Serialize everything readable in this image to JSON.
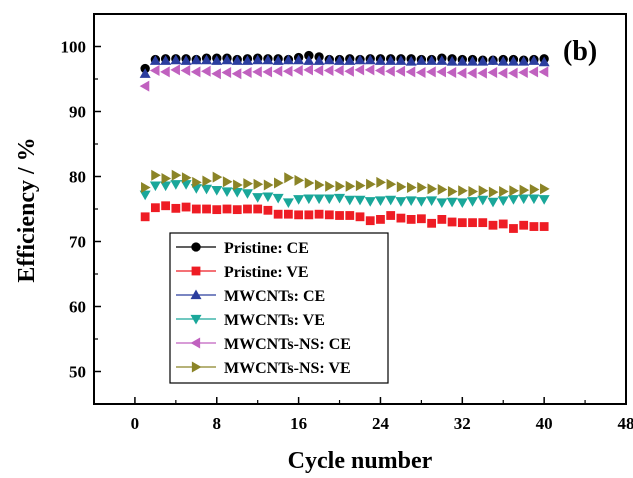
{
  "chart_data": {
    "type": "scatter",
    "panel_label": "(b)",
    "xlabel": "Cycle number",
    "ylabel": "Efficiency / %",
    "xlim": [
      -4,
      48
    ],
    "ylim": [
      45,
      105
    ],
    "xticks": [
      0,
      8,
      16,
      24,
      32,
      40,
      48
    ],
    "yticks": [
      50,
      60,
      70,
      80,
      90,
      100
    ],
    "legend_position": "bottom-left",
    "grid": false,
    "x": [
      1,
      2,
      3,
      4,
      5,
      6,
      7,
      8,
      9,
      10,
      11,
      12,
      13,
      14,
      15,
      16,
      17,
      18,
      19,
      20,
      21,
      22,
      23,
      24,
      25,
      26,
      27,
      28,
      29,
      30,
      31,
      32,
      33,
      34,
      35,
      36,
      37,
      38,
      39,
      40
    ],
    "series": [
      {
        "name": "Pristine: CE",
        "color": "#000000",
        "marker": "circle",
        "values": [
          96.6,
          98.0,
          98.1,
          98.1,
          98.1,
          98.0,
          98.2,
          98.2,
          98.2,
          98.0,
          98.1,
          98.2,
          98.1,
          98.1,
          98.0,
          98.3,
          98.6,
          98.4,
          98.0,
          98.0,
          98.1,
          98.0,
          98.1,
          98.1,
          98.1,
          98.1,
          98.1,
          98.0,
          98.0,
          98.2,
          98.1,
          98.0,
          98.0,
          97.9,
          97.9,
          98.0,
          98.0,
          97.9,
          98.0,
          98.1
        ]
      },
      {
        "name": "Pristine: VE",
        "color": "#ee1c24",
        "marker": "square",
        "values": [
          73.8,
          75.2,
          75.5,
          75.1,
          75.3,
          75.0,
          75.0,
          74.9,
          75.0,
          74.9,
          75.0,
          75.0,
          74.8,
          74.2,
          74.2,
          74.1,
          74.1,
          74.2,
          74.1,
          74.0,
          74.0,
          73.8,
          73.2,
          73.4,
          74.0,
          73.6,
          73.4,
          73.5,
          72.8,
          73.4,
          73.0,
          72.9,
          72.9,
          72.9,
          72.5,
          72.7,
          72.0,
          72.5,
          72.3,
          72.3
        ]
      },
      {
        "name": "MWCNTs: CE",
        "color": "#2b3d9e",
        "marker": "triangle-up",
        "values": [
          95.8,
          97.8,
          97.8,
          97.9,
          97.8,
          97.9,
          97.9,
          97.8,
          97.9,
          97.8,
          97.8,
          97.9,
          97.9,
          97.8,
          97.9,
          97.9,
          97.8,
          97.8,
          97.9,
          97.8,
          97.8,
          97.9,
          97.9,
          97.8,
          97.8,
          97.8,
          97.7,
          97.8,
          97.8,
          97.8,
          97.7,
          97.7,
          97.7,
          97.7,
          97.8,
          97.7,
          97.7,
          97.7,
          97.8,
          97.6
        ]
      },
      {
        "name": "MWCNTs: VE",
        "color": "#1aa79a",
        "marker": "triangle-down",
        "values": [
          77.2,
          78.6,
          78.6,
          78.8,
          78.8,
          78.2,
          78.1,
          77.9,
          77.7,
          77.6,
          77.4,
          76.8,
          76.9,
          76.7,
          76.0,
          76.5,
          76.6,
          76.6,
          76.6,
          76.7,
          76.4,
          76.4,
          76.2,
          76.3,
          76.4,
          76.2,
          76.3,
          76.2,
          76.3,
          76.0,
          76.1,
          76.0,
          76.2,
          76.4,
          76.1,
          76.3,
          76.5,
          76.6,
          76.6,
          76.5
        ]
      },
      {
        "name": "MWCNTs-NS: CE",
        "color": "#c061bf",
        "marker": "triangle-left",
        "values": [
          93.9,
          96.3,
          96.1,
          96.4,
          96.3,
          96.1,
          96.2,
          95.8,
          96.0,
          95.8,
          96.0,
          96.1,
          96.1,
          96.2,
          96.2,
          96.3,
          96.4,
          96.3,
          96.3,
          96.3,
          96.2,
          96.4,
          96.4,
          96.3,
          96.2,
          96.2,
          96.1,
          96.0,
          96.1,
          96.1,
          96.0,
          95.9,
          95.9,
          95.9,
          96.0,
          95.9,
          95.9,
          96.0,
          96.1,
          96.1
        ]
      },
      {
        "name": "MWCNTs-NS: VE",
        "color": "#8b8427",
        "marker": "triangle-right",
        "values": [
          78.3,
          80.2,
          79.7,
          80.2,
          79.8,
          79.1,
          79.3,
          79.9,
          79.2,
          78.7,
          78.9,
          78.8,
          78.7,
          79.0,
          79.8,
          79.4,
          79.0,
          78.7,
          78.5,
          78.5,
          78.5,
          78.6,
          78.8,
          79.1,
          78.8,
          78.4,
          78.3,
          78.3,
          78.1,
          78.0,
          77.7,
          77.8,
          77.7,
          77.8,
          77.6,
          77.7,
          77.8,
          77.9,
          78.0,
          78.1
        ]
      }
    ]
  }
}
